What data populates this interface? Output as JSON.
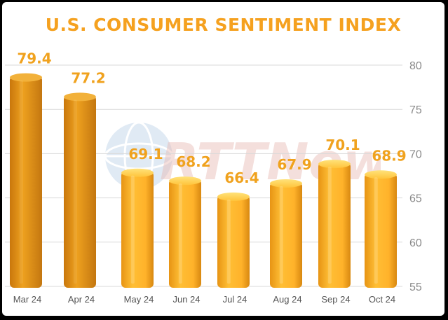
{
  "chart_data": {
    "type": "bar",
    "title": "U.S. CONSUMER SENTIMENT INDEX",
    "categories": [
      "Mar 24",
      "Apr 24",
      "May 24",
      "Jun 24",
      "Jul 24",
      "Aug 24",
      "Sep 24",
      "Oct 24"
    ],
    "values": [
      79.4,
      77.2,
      69.1,
      68.2,
      66.4,
      67.9,
      70.1,
      68.9
    ],
    "value_labels": [
      "79.4",
      "77.2",
      "69.1",
      "68.2",
      "66.4",
      "67.9",
      "70.1",
      "68.9"
    ],
    "ylim": [
      55,
      80
    ],
    "yticks": [
      55,
      60,
      65,
      70,
      75,
      80
    ],
    "y_axis_side": "right",
    "grid": true,
    "xlabel": "",
    "ylabel": ""
  },
  "watermark": {
    "text": "RTTNews",
    "icon": "globe-icon"
  },
  "colors": {
    "title": "#f5a11f",
    "value_labels": "#f0a21e",
    "bar_highlight": "#ffd24a",
    "bar_mid": "#ffb52a",
    "bar_dark": "#d98a12",
    "grid": "#d9d9d9",
    "background": "#ffffff",
    "frame": "#000000"
  }
}
